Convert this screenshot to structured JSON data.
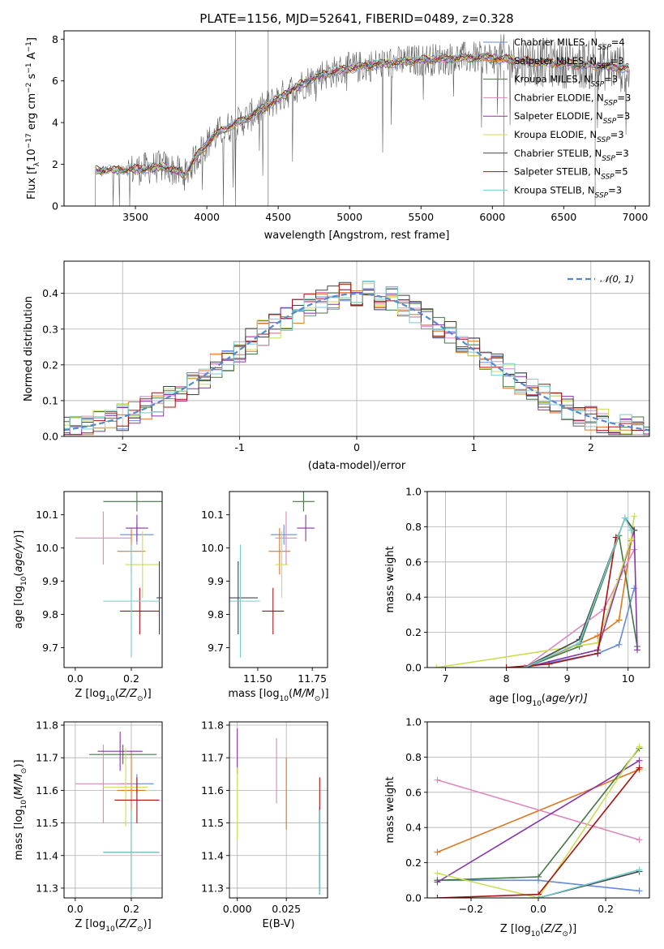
{
  "figure": {
    "title": "PLATE=1156, MJD=52641, FIBERID=0489, z=0.328",
    "colors": [
      "#6688dd",
      "#e07722",
      "#447744",
      "#dd88bb",
      "#8833aa",
      "#ccdd55",
      "#444444",
      "#aa1111",
      "#77cccc"
    ],
    "model_names": [
      "Chabrier MILES",
      "Salpeter MILES",
      "Kroupa MILES",
      "Chabrier ELODIE",
      "Salpeter ELODIE",
      "Kroupa ELODIE",
      "Chabrier STELIB",
      "Salpeter STELIB",
      "Kroupa STELIB"
    ],
    "nssp": [
      4,
      3,
      3,
      3,
      3,
      3,
      3,
      5,
      3
    ],
    "nssp_prefix": "N",
    "nssp_sub": "SSP",
    "nssp_eq": "=",
    "legend_placement": "upper-right"
  },
  "chart_data": [
    {
      "id": "spectrum",
      "type": "line",
      "ylabel_main": "Flux [f",
      "ylabel_sub": "λ",
      "ylabel_rest": "10",
      "ylabel_exp1": "−17",
      "ylabel_mid": " erg cm",
      "ylabel_exp2": "−2",
      "ylabel_mid2": " s",
      "ylabel_exp3": "−1",
      "ylabel_mid3": " A",
      "ylabel_exp4": "−1",
      "ylabel_end": "]",
      "xlabel": "wavelength [Angstrom, rest frame]",
      "xlim": [
        3000,
        7100
      ],
      "ylim": [
        0,
        8.4
      ],
      "xticks": [
        3500,
        4000,
        4500,
        5000,
        5500,
        6000,
        6500,
        7000
      ],
      "yticks": [
        0,
        2,
        4,
        6,
        8
      ],
      "grid": false,
      "data_range": [
        3220,
        6960
      ],
      "continuum": [
        [
          3220,
          1.7
        ],
        [
          3500,
          1.75
        ],
        [
          3700,
          1.9
        ],
        [
          3850,
          1.5
        ],
        [
          3950,
          2.6
        ],
        [
          4000,
          3.0
        ],
        [
          4100,
          3.6
        ],
        [
          4250,
          4.1
        ],
        [
          4400,
          4.7
        ],
        [
          4600,
          5.6
        ],
        [
          4800,
          6.3
        ],
        [
          5000,
          6.6
        ],
        [
          5200,
          6.8
        ],
        [
          5500,
          7.0
        ],
        [
          5800,
          7.1
        ],
        [
          6000,
          7.1
        ],
        [
          6300,
          6.9
        ],
        [
          6600,
          6.8
        ],
        [
          6960,
          6.6
        ]
      ],
      "lines": [
        {
          "name": "Chabrier MILES",
          "color": "#6688dd"
        },
        {
          "name": "Salpeter MILES",
          "color": "#e07722"
        },
        {
          "name": "Kroupa MILES",
          "color": "#447744"
        },
        {
          "name": "Chabrier ELODIE",
          "color": "#dd88bb"
        },
        {
          "name": "Salpeter ELODIE",
          "color": "#8833aa"
        },
        {
          "name": "Kroupa ELODIE",
          "color": "#ccdd55"
        },
        {
          "name": "Chabrier STELIB",
          "color": "#444444"
        },
        {
          "name": "Salpeter STELIB",
          "color": "#aa1111"
        },
        {
          "name": "Kroupa STELIB",
          "color": "#77cccc"
        }
      ]
    },
    {
      "id": "residual-histogram",
      "type": "histogram",
      "ylabel": "Normed distribution",
      "xlabel": "(data-model)/error",
      "xlim": [
        -2.5,
        2.5
      ],
      "ylim": [
        0,
        0.49
      ],
      "xticks": [
        -2,
        -1,
        0,
        1,
        2
      ],
      "yticks": [
        0.0,
        0.1,
        0.2,
        0.3,
        0.4
      ],
      "grid": true,
      "bin_width": 0.1,
      "reference_curve": {
        "name": "𝒩(0, 1)",
        "mean": 0,
        "sigma": 1,
        "color": "#5588cc"
      }
    },
    {
      "id": "age-vs-Z",
      "type": "errorbar",
      "ylabel_main": "age  [log",
      "ylabel_sub": "10",
      "ylabel_end": "(age/yr)]",
      "xlabel_main": "Z [log",
      "xlabel_sub": "10",
      "xlabel_end": "(Z/Z",
      "xlabel_tail": "⊙",
      "xlabel_close": ")]",
      "xlim": [
        -0.04,
        0.31
      ],
      "ylim": [
        9.64,
        10.17
      ],
      "xticks": [
        0.0,
        0.2
      ],
      "xtick_labels": [
        "0.0",
        "0.2"
      ],
      "yticks": [
        9.7,
        9.8,
        9.9,
        10.0,
        10.1
      ],
      "grid": false,
      "points": [
        {
          "color": "#6688dd",
          "x": 0.22,
          "xerr": 0.06,
          "y": 10.04,
          "yerr": 0.03
        },
        {
          "color": "#e07722",
          "x": 0.2,
          "xerr": 0.05,
          "y": 9.99,
          "yerr": 0.07
        },
        {
          "color": "#447744",
          "x": 0.22,
          "xerr": 0.12,
          "y": 10.14,
          "yerr": 0.03
        },
        {
          "color": "#dd88bb",
          "x": 0.1,
          "xerr": 0.1,
          "y": 10.03,
          "yerr": 0.08
        },
        {
          "color": "#8833aa",
          "x": 0.22,
          "xerr": 0.04,
          "y": 10.06,
          "yerr": 0.04
        },
        {
          "color": "#ccdd55",
          "x": 0.24,
          "xerr": 0.06,
          "y": 9.95,
          "yerr": 0.1
        },
        {
          "color": "#444444",
          "x": 0.3,
          "xerr": 0.01,
          "y": 9.85,
          "yerr": 0.11
        },
        {
          "color": "#aa1111",
          "x": 0.23,
          "xerr": 0.07,
          "y": 9.81,
          "yerr": 0.07
        },
        {
          "color": "#77cccc",
          "x": 0.2,
          "xerr": 0.1,
          "y": 9.84,
          "yerr": 0.17
        }
      ]
    },
    {
      "id": "age-vs-mass",
      "type": "errorbar",
      "xlabel_main": "mass [log",
      "xlabel_sub": "10",
      "xlabel_end": "(M/M",
      "xlabel_tail": "⊙",
      "xlabel_close": ")]",
      "xlim": [
        11.37,
        11.82
      ],
      "ylim": [
        9.64,
        10.17
      ],
      "xticks": [
        11.5,
        11.75
      ],
      "xtick_labels": [
        "11.50",
        "11.75"
      ],
      "yticks": [
        9.7,
        9.8,
        9.9,
        10.0,
        10.1
      ],
      "grid": false,
      "points": [
        {
          "color": "#6688dd",
          "x": 11.62,
          "xerr": 0.06,
          "y": 10.04,
          "yerr": 0.03
        },
        {
          "color": "#e07722",
          "x": 11.6,
          "xerr": 0.05,
          "y": 9.99,
          "yerr": 0.07
        },
        {
          "color": "#447744",
          "x": 11.71,
          "xerr": 0.05,
          "y": 10.14,
          "yerr": 0.03
        },
        {
          "color": "#dd88bb",
          "x": 11.63,
          "xerr": 0.05,
          "y": 10.03,
          "yerr": 0.08
        },
        {
          "color": "#8833aa",
          "x": 11.72,
          "xerr": 0.04,
          "y": 10.06,
          "yerr": 0.04
        },
        {
          "color": "#ccdd55",
          "x": 11.61,
          "xerr": 0.03,
          "y": 9.95,
          "yerr": 0.1
        },
        {
          "color": "#444444",
          "x": 11.41,
          "xerr": 0.09,
          "y": 9.85,
          "yerr": 0.11
        },
        {
          "color": "#aa1111",
          "x": 11.57,
          "xerr": 0.05,
          "y": 9.81,
          "yerr": 0.07
        },
        {
          "color": "#77cccc",
          "x": 11.42,
          "xerr": 0.09,
          "y": 9.84,
          "yerr": 0.17
        }
      ]
    },
    {
      "id": "mass-weight-vs-age",
      "type": "line",
      "ylabel": "mass weight",
      "xlabel_main": "age  [log",
      "xlabel_sub": "10",
      "xlabel_end": "(age/yr)]",
      "xlim": [
        6.7,
        10.35
      ],
      "ylim": [
        0,
        1.0
      ],
      "xticks": [
        7,
        8,
        9,
        10
      ],
      "yticks": [
        0.0,
        0.2,
        0.4,
        0.6,
        0.8,
        1.0
      ],
      "grid": true,
      "series": [
        {
          "color": "#6688dd",
          "x": [
            8.3,
            9.5,
            9.85,
            10.1
          ],
          "y": [
            0.0,
            0.08,
            0.13,
            0.45
          ]
        },
        {
          "color": "#e07722",
          "x": [
            8.3,
            9.5,
            9.85,
            10.05
          ],
          "y": [
            0.0,
            0.18,
            0.27,
            0.72
          ]
        },
        {
          "color": "#447744",
          "x": [
            8.3,
            9.2,
            9.85,
            10.15
          ],
          "y": [
            0.0,
            0.12,
            0.75,
            0.12
          ]
        },
        {
          "color": "#dd88bb",
          "x": [
            8.3,
            9.6,
            9.85,
            10.1
          ],
          "y": [
            0.0,
            0.33,
            0.5,
            0.67
          ]
        },
        {
          "color": "#8833aa",
          "x": [
            8.3,
            9.5,
            10.1,
            10.15
          ],
          "y": [
            0.0,
            0.1,
            0.78,
            0.1
          ]
        },
        {
          "color": "#ccdd55",
          "x": [
            6.85,
            9.5,
            10.05,
            10.1
          ],
          "y": [
            0.0,
            0.14,
            0.73,
            0.86
          ]
        },
        {
          "color": "#444444",
          "x": [
            8.3,
            9.2,
            9.95,
            10.1
          ],
          "y": [
            0.0,
            0.16,
            0.85,
            0.78
          ]
        },
        {
          "color": "#aa1111",
          "x": [
            8.0,
            8.7,
            9.5,
            9.8
          ],
          "y": [
            0.0,
            0.02,
            0.08,
            0.74
          ]
        },
        {
          "color": "#77cccc",
          "x": [
            8.3,
            9.2,
            9.95,
            10.05
          ],
          "y": [
            0.0,
            0.14,
            0.85,
            0.78
          ]
        }
      ]
    },
    {
      "id": "mass-vs-Z",
      "type": "errorbar",
      "ylabel_main": "mass [log",
      "ylabel_sub": "10",
      "ylabel_end": "(M/M",
      "ylabel_tail": "⊙",
      "ylabel_close": ")]",
      "xlabel_main": "Z [log",
      "xlabel_sub": "10",
      "xlabel_end": "(Z/Z",
      "xlabel_tail": "⊙",
      "xlabel_close": ")]",
      "xlim": [
        -0.04,
        0.31
      ],
      "ylim": [
        11.27,
        11.81
      ],
      "xticks": [
        0.0,
        0.2
      ],
      "xtick_labels": [
        "0.0",
        "0.2"
      ],
      "yticks": [
        11.3,
        11.4,
        11.5,
        11.6,
        11.7,
        11.8
      ],
      "grid": true,
      "points": [
        {
          "color": "#6688dd",
          "x": 0.22,
          "xerr": 0.06,
          "y": 11.62,
          "yerr": 0.03
        },
        {
          "color": "#e07722",
          "x": 0.2,
          "xerr": 0.05,
          "y": 11.6,
          "yerr": 0.12
        },
        {
          "color": "#447744",
          "x": 0.17,
          "xerr": 0.12,
          "y": 11.71,
          "yerr": 0.03
        },
        {
          "color": "#dd88bb",
          "x": 0.1,
          "xerr": 0.1,
          "y": 11.62,
          "yerr": 0.12
        },
        {
          "color": "#8833aa",
          "x": 0.16,
          "xerr": 0.08,
          "y": 11.72,
          "yerr": 0.06
        },
        {
          "color": "#ccdd55",
          "x": 0.18,
          "xerr": 0.08,
          "y": 11.61,
          "yerr": 0.12
        },
        {
          "color": "#444444",
          "x": 0.2,
          "xerr": 0.1,
          "y": 11.41,
          "yerr": 0.13
        },
        {
          "color": "#aa1111",
          "x": 0.22,
          "xerr": 0.08,
          "y": 11.57,
          "yerr": 0.07
        },
        {
          "color": "#77cccc",
          "x": 0.2,
          "xerr": 0.1,
          "y": 11.41,
          "yerr": 0.13
        }
      ]
    },
    {
      "id": "mass-vs-EBV",
      "type": "errorbar",
      "xlabel": "E(B-V)",
      "xlim": [
        -0.004,
        0.046
      ],
      "ylim": [
        11.27,
        11.81
      ],
      "xticks": [
        0.0,
        0.025
      ],
      "xtick_labels": [
        "0.000",
        "0.025"
      ],
      "yticks": [
        11.3,
        11.4,
        11.5,
        11.6,
        11.7,
        11.8
      ],
      "grid": true,
      "points": [
        {
          "color": "#6688dd",
          "x": 0.042,
          "xerr": 0,
          "y": 11.45,
          "yerr": 0.1
        },
        {
          "color": "#e07722",
          "x": 0.025,
          "xerr": 0,
          "y": 11.59,
          "yerr": 0.11
        },
        {
          "color": "#447744",
          "x": 0.042,
          "xerr": 0,
          "y": 11.42,
          "yerr": 0.12
        },
        {
          "color": "#dd88bb",
          "x": 0.02,
          "xerr": 0,
          "y": 11.66,
          "yerr": 0.1
        },
        {
          "color": "#8833aa",
          "x": 0.0,
          "xerr": 0,
          "y": 11.72,
          "yerr": 0.07
        },
        {
          "color": "#ccdd55",
          "x": 0.0,
          "xerr": 0,
          "y": 11.56,
          "yerr": 0.11
        },
        {
          "color": "#444444",
          "x": 0.042,
          "xerr": 0,
          "y": 11.41,
          "yerr": 0.13
        },
        {
          "color": "#aa1111",
          "x": 0.042,
          "xerr": 0,
          "y": 11.57,
          "yerr": 0.07
        },
        {
          "color": "#77cccc",
          "x": 0.042,
          "xerr": 0,
          "y": 11.41,
          "yerr": 0.13
        }
      ]
    },
    {
      "id": "mass-weight-vs-Z",
      "type": "line",
      "ylabel": "mass weight",
      "xlabel_main": "Z [log",
      "xlabel_sub": "10",
      "xlabel_end": "(Z/Z",
      "xlabel_tail": "⊙",
      "xlabel_close": ")]",
      "xlim": [
        -0.33,
        0.33
      ],
      "ylim": [
        0,
        1.0
      ],
      "xticks": [
        -0.2,
        0.0,
        0.2
      ],
      "xtick_labels": [
        "−0.2",
        "0.0",
        "0.2"
      ],
      "yticks": [
        0.0,
        0.2,
        0.4,
        0.6,
        0.8,
        1.0
      ],
      "grid": true,
      "series": [
        {
          "color": "#6688dd",
          "x": [
            -0.3,
            0.0,
            0.3
          ],
          "y": [
            0.1,
            0.1,
            0.04
          ]
        },
        {
          "color": "#e07722",
          "x": [
            -0.3,
            0.3
          ],
          "y": [
            0.26,
            0.73
          ]
        },
        {
          "color": "#447744",
          "x": [
            -0.3,
            0.0,
            0.3
          ],
          "y": [
            0.1,
            0.12,
            0.85
          ]
        },
        {
          "color": "#dd88bb",
          "x": [
            -0.3,
            0.3
          ],
          "y": [
            0.67,
            0.33
          ]
        },
        {
          "color": "#8833aa",
          "x": [
            -0.3,
            0.3
          ],
          "y": [
            0.09,
            0.78
          ]
        },
        {
          "color": "#ccdd55",
          "x": [
            -0.3,
            0.0,
            0.3
          ],
          "y": [
            0.14,
            0.0,
            0.86
          ]
        },
        {
          "color": "#444444",
          "x": [
            0.0,
            0.3
          ],
          "y": [
            0.0,
            0.15
          ]
        },
        {
          "color": "#aa1111",
          "x": [
            -0.3,
            0.0,
            0.3
          ],
          "y": [
            0.0,
            0.02,
            0.74
          ]
        },
        {
          "color": "#77cccc",
          "x": [
            0.0,
            0.3
          ],
          "y": [
            0.0,
            0.16
          ]
        }
      ]
    }
  ]
}
